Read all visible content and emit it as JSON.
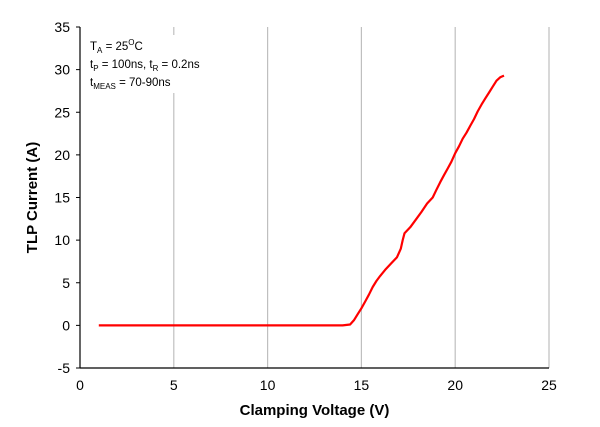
{
  "chart_data": {
    "type": "line",
    "xlabel": "Clamping Voltage (V)",
    "ylabel": "TLP Current (A)",
    "xlim": [
      0,
      25
    ],
    "ylim": [
      -5,
      35
    ],
    "x_ticks": [
      "0",
      "5",
      "10",
      "15",
      "20",
      "25"
    ],
    "y_ticks": [
      "-5",
      "0",
      "5",
      "10",
      "15",
      "20",
      "25",
      "30",
      "35"
    ],
    "grid": "vertical",
    "annotations": [
      {
        "main": "T",
        "sub": "A",
        "rest": " = 25",
        "sup": "O",
        "tail": "C"
      },
      {
        "p1": "t",
        "s1": "P",
        "r1": " = 100ns, t",
        "s2": "R",
        "r2": " = 0.2ns"
      },
      {
        "main": "t",
        "sub": "MEAS",
        "rest": " = 70-90ns"
      }
    ],
    "series": [
      {
        "color": "#ff0000",
        "x": [
          1.0,
          5.0,
          10.0,
          14.0,
          14.4,
          14.6,
          14.8,
          15.0,
          15.2,
          15.4,
          15.6,
          15.8,
          16.0,
          16.3,
          16.6,
          16.9,
          17.1,
          17.2,
          17.3,
          17.6,
          17.9,
          18.2,
          18.5,
          18.8,
          19.0,
          19.2,
          19.4,
          19.6,
          19.8,
          20.0,
          20.2,
          20.4,
          20.6,
          20.8,
          21.0,
          21.2,
          21.4,
          21.6,
          21.8,
          22.0,
          22.2,
          22.4,
          22.6
        ],
        "y": [
          0.0,
          0.0,
          0.0,
          0.0,
          0.1,
          0.6,
          1.3,
          2.0,
          2.8,
          3.6,
          4.5,
          5.2,
          5.8,
          6.6,
          7.3,
          8.0,
          9.0,
          10.0,
          10.8,
          11.5,
          12.4,
          13.3,
          14.3,
          15.0,
          15.9,
          16.8,
          17.6,
          18.4,
          19.2,
          20.2,
          21.0,
          21.9,
          22.6,
          23.4,
          24.2,
          25.1,
          25.9,
          26.6,
          27.3,
          28.0,
          28.7,
          29.1,
          29.3
        ]
      }
    ]
  }
}
